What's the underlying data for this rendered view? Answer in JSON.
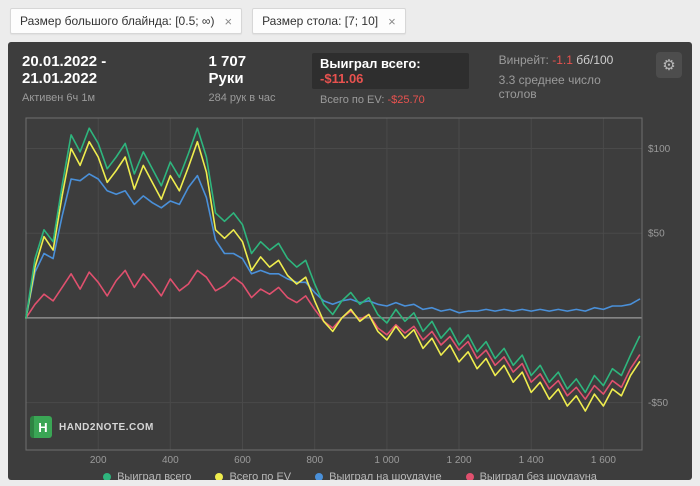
{
  "icons": {
    "close": "×",
    "gear": "⚙"
  },
  "filters": {
    "items": [
      {
        "label": "Размер большого блайнда: [0.5; ∞)"
      },
      {
        "label": "Размер стола: [7; 10]"
      }
    ]
  },
  "header": {
    "date_range": "20.01.2022 - 21.01.2022",
    "active_time": "Активен 6ч 1м",
    "hands": "1 707 Руки",
    "hands_per_hour": "284 рук в час",
    "won_total_label": "Выиграл всего:",
    "won_total_value": "-$11.06",
    "ev_total_label": "Всего по EV:",
    "ev_total_value": "-$25.70",
    "winrate_label": "Винрейт:",
    "winrate_value": "-1.1",
    "winrate_units": "бб/100",
    "avg_tables": "3.3 среднее число столов"
  },
  "logo": {
    "mark": "H",
    "text": "HAND2NOTE.COM"
  },
  "colors": {
    "panel_bg": "#3d3d3d",
    "accent_red": "#e8524f",
    "grid": "#4a4a4a",
    "zero_line": "#9b9b9b",
    "logo_green": "#3aa655"
  },
  "chart_data": {
    "type": "line",
    "title": "",
    "xlabel": "",
    "ylabel": "",
    "xlim": [
      0,
      1707
    ],
    "ylim": [
      -78,
      118
    ],
    "grid": true,
    "legend_position": "bottom",
    "x_ticks": [
      200,
      400,
      600,
      800,
      1000,
      1200,
      1400,
      1600
    ],
    "x_tick_labels": [
      "200",
      "400",
      "600",
      "800",
      "1 000",
      "1 200",
      "1 400",
      "1 600"
    ],
    "y_ticks": [
      100,
      50,
      -50
    ],
    "y_tick_labels": [
      "$100",
      "$50",
      "-$50"
    ],
    "y_zero_line": true,
    "x": [
      0,
      25,
      50,
      75,
      100,
      125,
      150,
      175,
      200,
      225,
      250,
      275,
      300,
      325,
      350,
      375,
      400,
      425,
      450,
      475,
      500,
      525,
      550,
      575,
      600,
      625,
      650,
      675,
      700,
      725,
      750,
      775,
      800,
      825,
      850,
      875,
      900,
      925,
      950,
      975,
      1000,
      1025,
      1050,
      1075,
      1100,
      1125,
      1150,
      1175,
      1200,
      1225,
      1250,
      1275,
      1300,
      1325,
      1350,
      1375,
      1400,
      1425,
      1450,
      1475,
      1500,
      1525,
      1550,
      1575,
      1600,
      1625,
      1650,
      1675,
      1700
    ],
    "series": [
      {
        "name": "Выиграл всего",
        "color": "#2eb57d",
        "final_value": -11.06,
        "values": [
          0,
          35,
          52,
          45,
          78,
          108,
          98,
          112,
          103,
          88,
          95,
          103,
          85,
          98,
          88,
          78,
          92,
          83,
          97,
          112,
          95,
          62,
          57,
          62,
          55,
          38,
          45,
          40,
          44,
          35,
          30,
          34,
          20,
          8,
          2,
          10,
          15,
          8,
          12,
          2,
          -3,
          5,
          -2,
          3,
          -8,
          -2,
          -12,
          -6,
          -16,
          -10,
          -20,
          -14,
          -24,
          -18,
          -28,
          -22,
          -34,
          -28,
          -38,
          -32,
          -42,
          -36,
          -44,
          -34,
          -40,
          -30,
          -34,
          -22,
          -11
        ]
      },
      {
        "name": "Всего по EV",
        "color": "#efed4e",
        "final_value": -25.7,
        "values": [
          0,
          30,
          48,
          40,
          72,
          100,
          90,
          104,
          95,
          80,
          87,
          95,
          76,
          90,
          80,
          70,
          84,
          75,
          89,
          104,
          86,
          52,
          47,
          52,
          45,
          28,
          36,
          30,
          34,
          25,
          20,
          24,
          10,
          -2,
          -8,
          0,
          5,
          -2,
          2,
          -8,
          -13,
          -5,
          -12,
          -7,
          -18,
          -12,
          -22,
          -16,
          -26,
          -20,
          -30,
          -24,
          -34,
          -28,
          -38,
          -32,
          -44,
          -38,
          -48,
          -42,
          -52,
          -46,
          -55,
          -45,
          -52,
          -42,
          -46,
          -34,
          -26
        ]
      },
      {
        "name": "Выиграл на шоудауне",
        "color": "#4a90d9",
        "values": [
          0,
          27,
          38,
          35,
          60,
          82,
          81,
          85,
          82,
          75,
          73,
          75,
          67,
          72,
          68,
          65,
          69,
          67,
          77,
          84,
          71,
          46,
          38,
          38,
          35,
          26,
          28,
          26,
          26,
          23,
          21,
          21,
          15,
          10,
          8,
          10,
          11,
          9,
          10,
          8,
          7,
          9,
          7,
          8,
          5,
          6,
          4,
          5,
          3,
          4,
          4,
          5,
          4,
          5,
          4,
          5,
          4,
          5,
          4,
          5,
          4,
          5,
          4,
          6,
          5,
          7,
          7,
          8,
          11
        ]
      },
      {
        "name": "Выиграл без шоудауна",
        "color": "#e0506e",
        "values": [
          0,
          8,
          14,
          10,
          18,
          26,
          17,
          27,
          21,
          13,
          22,
          28,
          18,
          26,
          20,
          13,
          23,
          16,
          20,
          28,
          24,
          16,
          19,
          24,
          20,
          12,
          17,
          14,
          18,
          12,
          9,
          13,
          5,
          -2,
          -6,
          0,
          4,
          -1,
          2,
          -6,
          -10,
          -4,
          -9,
          -5,
          -13,
          -8,
          -16,
          -11,
          -19,
          -14,
          -24,
          -19,
          -28,
          -23,
          -32,
          -27,
          -38,
          -33,
          -42,
          -37,
          -46,
          -41,
          -48,
          -40,
          -45,
          -37,
          -41,
          -30,
          -22
        ]
      }
    ]
  }
}
